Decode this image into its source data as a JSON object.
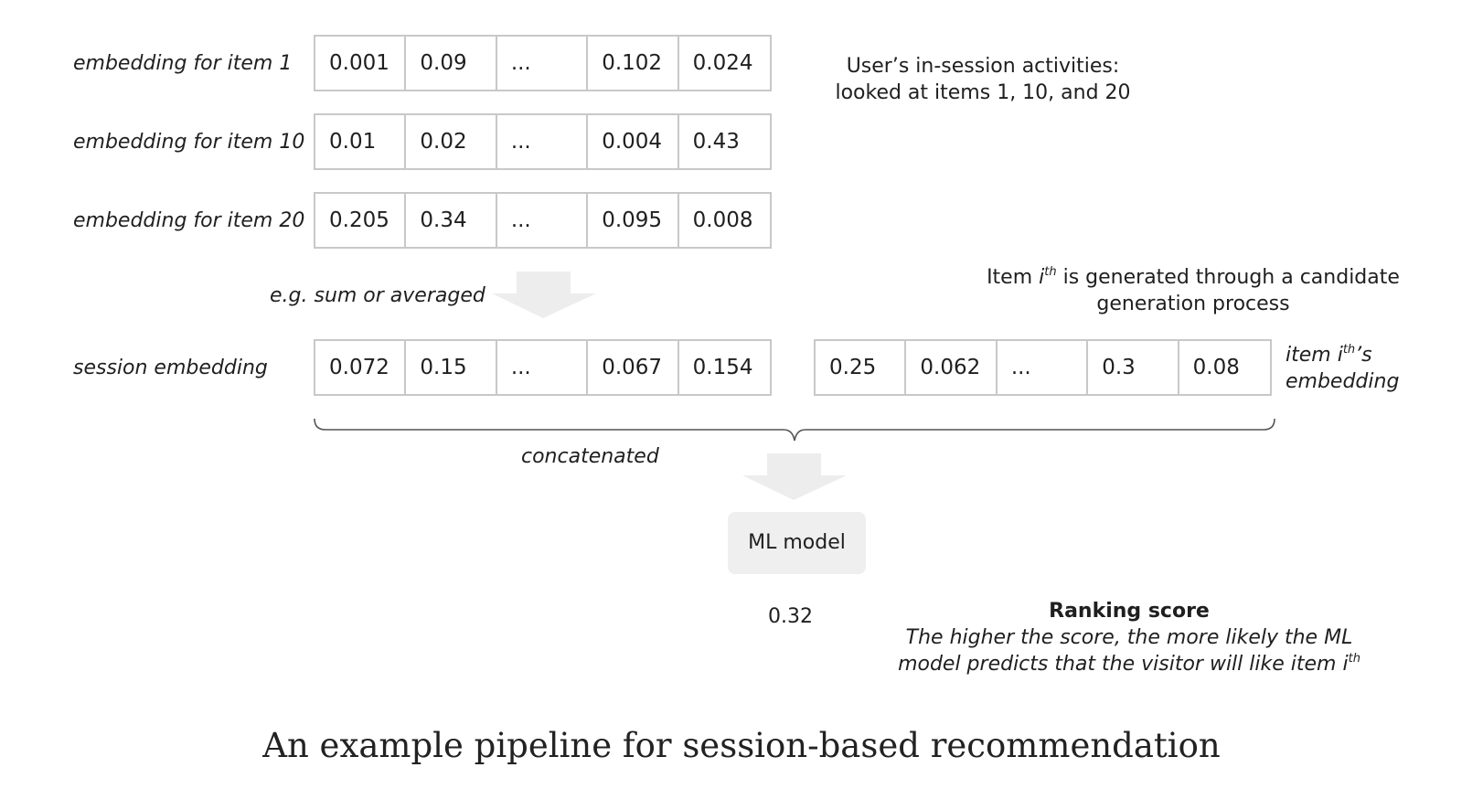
{
  "rows": [
    {
      "label": "embedding for item 1",
      "values": [
        "0.001",
        "0.09",
        "...",
        "0.102",
        "0.024"
      ]
    },
    {
      "label": "embedding for item 10",
      "values": [
        "0.01",
        "0.02",
        "...",
        "0.004",
        "0.43"
      ]
    },
    {
      "label": "embedding for item 20",
      "values": [
        "0.205",
        "0.34",
        "...",
        "0.095",
        "0.008"
      ]
    }
  ],
  "activities_note": {
    "line1": "User’s in-session activities:",
    "line2": "looked at items 1, 10, and 20"
  },
  "aggregation_label": "e.g. sum or averaged",
  "candidate_note": {
    "prefix": "Item ",
    "var": "i",
    "sup": "th",
    "line1_rest": " is generated through a candidate",
    "line2": "generation process"
  },
  "session": {
    "label": "session embedding",
    "values": [
      "0.072",
      "0.15",
      "...",
      "0.067",
      "0.154"
    ]
  },
  "item_embedding": {
    "values": [
      "0.25",
      "0.062",
      "...",
      "0.3",
      "0.08"
    ],
    "label_prefix": "item ",
    "label_var": "i",
    "label_sup": "th",
    "label_suffix": "’s",
    "label_line2": "embedding"
  },
  "concat_label": "concatenated",
  "model_label": "ML model",
  "score_value": "0.32",
  "ranking": {
    "title": "Ranking score",
    "line1": "The higher the score, the more likely the ML",
    "line2": "model predicts that the visitor will like item ",
    "var": "i",
    "sup": "th"
  },
  "caption": "An example pipeline for session-based recommendation",
  "colors": {
    "cell_border": "#c8c8c8",
    "arrow_fill": "#ededed",
    "model_box": "#efefef",
    "brace": "#555555"
  }
}
